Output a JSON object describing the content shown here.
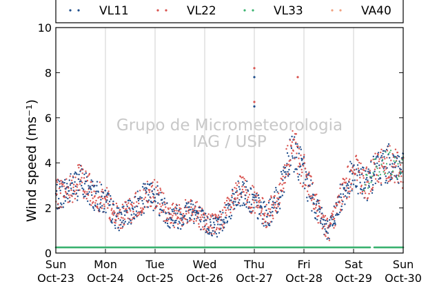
{
  "chart_data": {
    "type": "scatter",
    "ylabel": "Wind speed (ms⁻¹)",
    "ylim": [
      0,
      10
    ],
    "yticks": [
      0,
      2,
      4,
      6,
      8,
      10
    ],
    "xlim": [
      "2016-10-23T00:00",
      "2016-10-30T00:00"
    ],
    "xtick_days": [
      "Sun",
      "Mon",
      "Tue",
      "Wed",
      "Thu",
      "Fri",
      "Sat",
      "Sun"
    ],
    "xtick_dates": [
      "Oct-23",
      "Oct-24",
      "Oct-25",
      "Oct-26",
      "Oct-27",
      "Oct-28",
      "Oct-29",
      "Oct-30"
    ],
    "grid": "vertical",
    "legend_position": "top",
    "watermark": [
      "Grupo de Micrometeorologia",
      "IAG / USP"
    ],
    "series": [
      {
        "name": "VL11",
        "color": "#1f4e8c",
        "marker": "dot"
      },
      {
        "name": "VL22",
        "color": "#d9534f",
        "marker": "dot"
      },
      {
        "name": "VL33",
        "color": "#3cb371",
        "marker": "dot"
      },
      {
        "name": "VA40",
        "color": "#f0a080",
        "marker": "dot"
      }
    ],
    "wind_profile": [
      [
        "2016-10-23T00:00",
        2.5
      ],
      [
        "2016-10-23T06:00",
        2.8
      ],
      [
        "2016-10-23T12:00",
        3.2
      ],
      [
        "2016-10-23T18:00",
        2.6
      ],
      [
        "2016-10-24T00:00",
        2.3
      ],
      [
        "2016-10-24T06:00",
        1.5
      ],
      [
        "2016-10-24T12:00",
        1.8
      ],
      [
        "2016-10-24T18:00",
        2.4
      ],
      [
        "2016-10-25T00:00",
        2.6
      ],
      [
        "2016-10-25T06:00",
        1.7
      ],
      [
        "2016-10-25T12:00",
        1.6
      ],
      [
        "2016-10-25T18:00",
        2.0
      ],
      [
        "2016-10-26T00:00",
        1.3
      ],
      [
        "2016-10-26T06:00",
        1.2
      ],
      [
        "2016-10-26T12:00",
        2.0
      ],
      [
        "2016-10-26T18:00",
        2.8
      ],
      [
        "2016-10-27T00:00",
        2.2
      ],
      [
        "2016-10-27T06:00",
        1.6
      ],
      [
        "2016-10-27T12:00",
        2.5
      ],
      [
        "2016-10-27T18:00",
        4.8
      ],
      [
        "2016-10-28T00:00",
        3.5
      ],
      [
        "2016-10-28T06:00",
        2.0
      ],
      [
        "2016-10-28T12:00",
        0.9
      ],
      [
        "2016-10-28T18:00",
        2.5
      ],
      [
        "2016-10-29T00:00",
        3.6
      ],
      [
        "2016-10-29T06:00",
        3.0
      ],
      [
        "2016-10-29T12:00",
        3.8
      ],
      [
        "2016-10-29T18:00",
        4.0
      ],
      [
        "2016-10-30T00:00",
        3.6
      ]
    ],
    "vl33_baseline": 0.25,
    "outliers": [
      {
        "series": "VL22",
        "x": "2016-10-27T00:00",
        "y": 8.2
      },
      {
        "series": "VL11",
        "x": "2016-10-27T00:00",
        "y": 7.8
      },
      {
        "series": "VL22",
        "x": "2016-10-27T21:00",
        "y": 7.8
      },
      {
        "series": "VL22",
        "x": "2016-10-27T00:00",
        "y": 6.7
      },
      {
        "series": "VL11",
        "x": "2016-10-27T00:00",
        "y": 6.5
      }
    ]
  }
}
